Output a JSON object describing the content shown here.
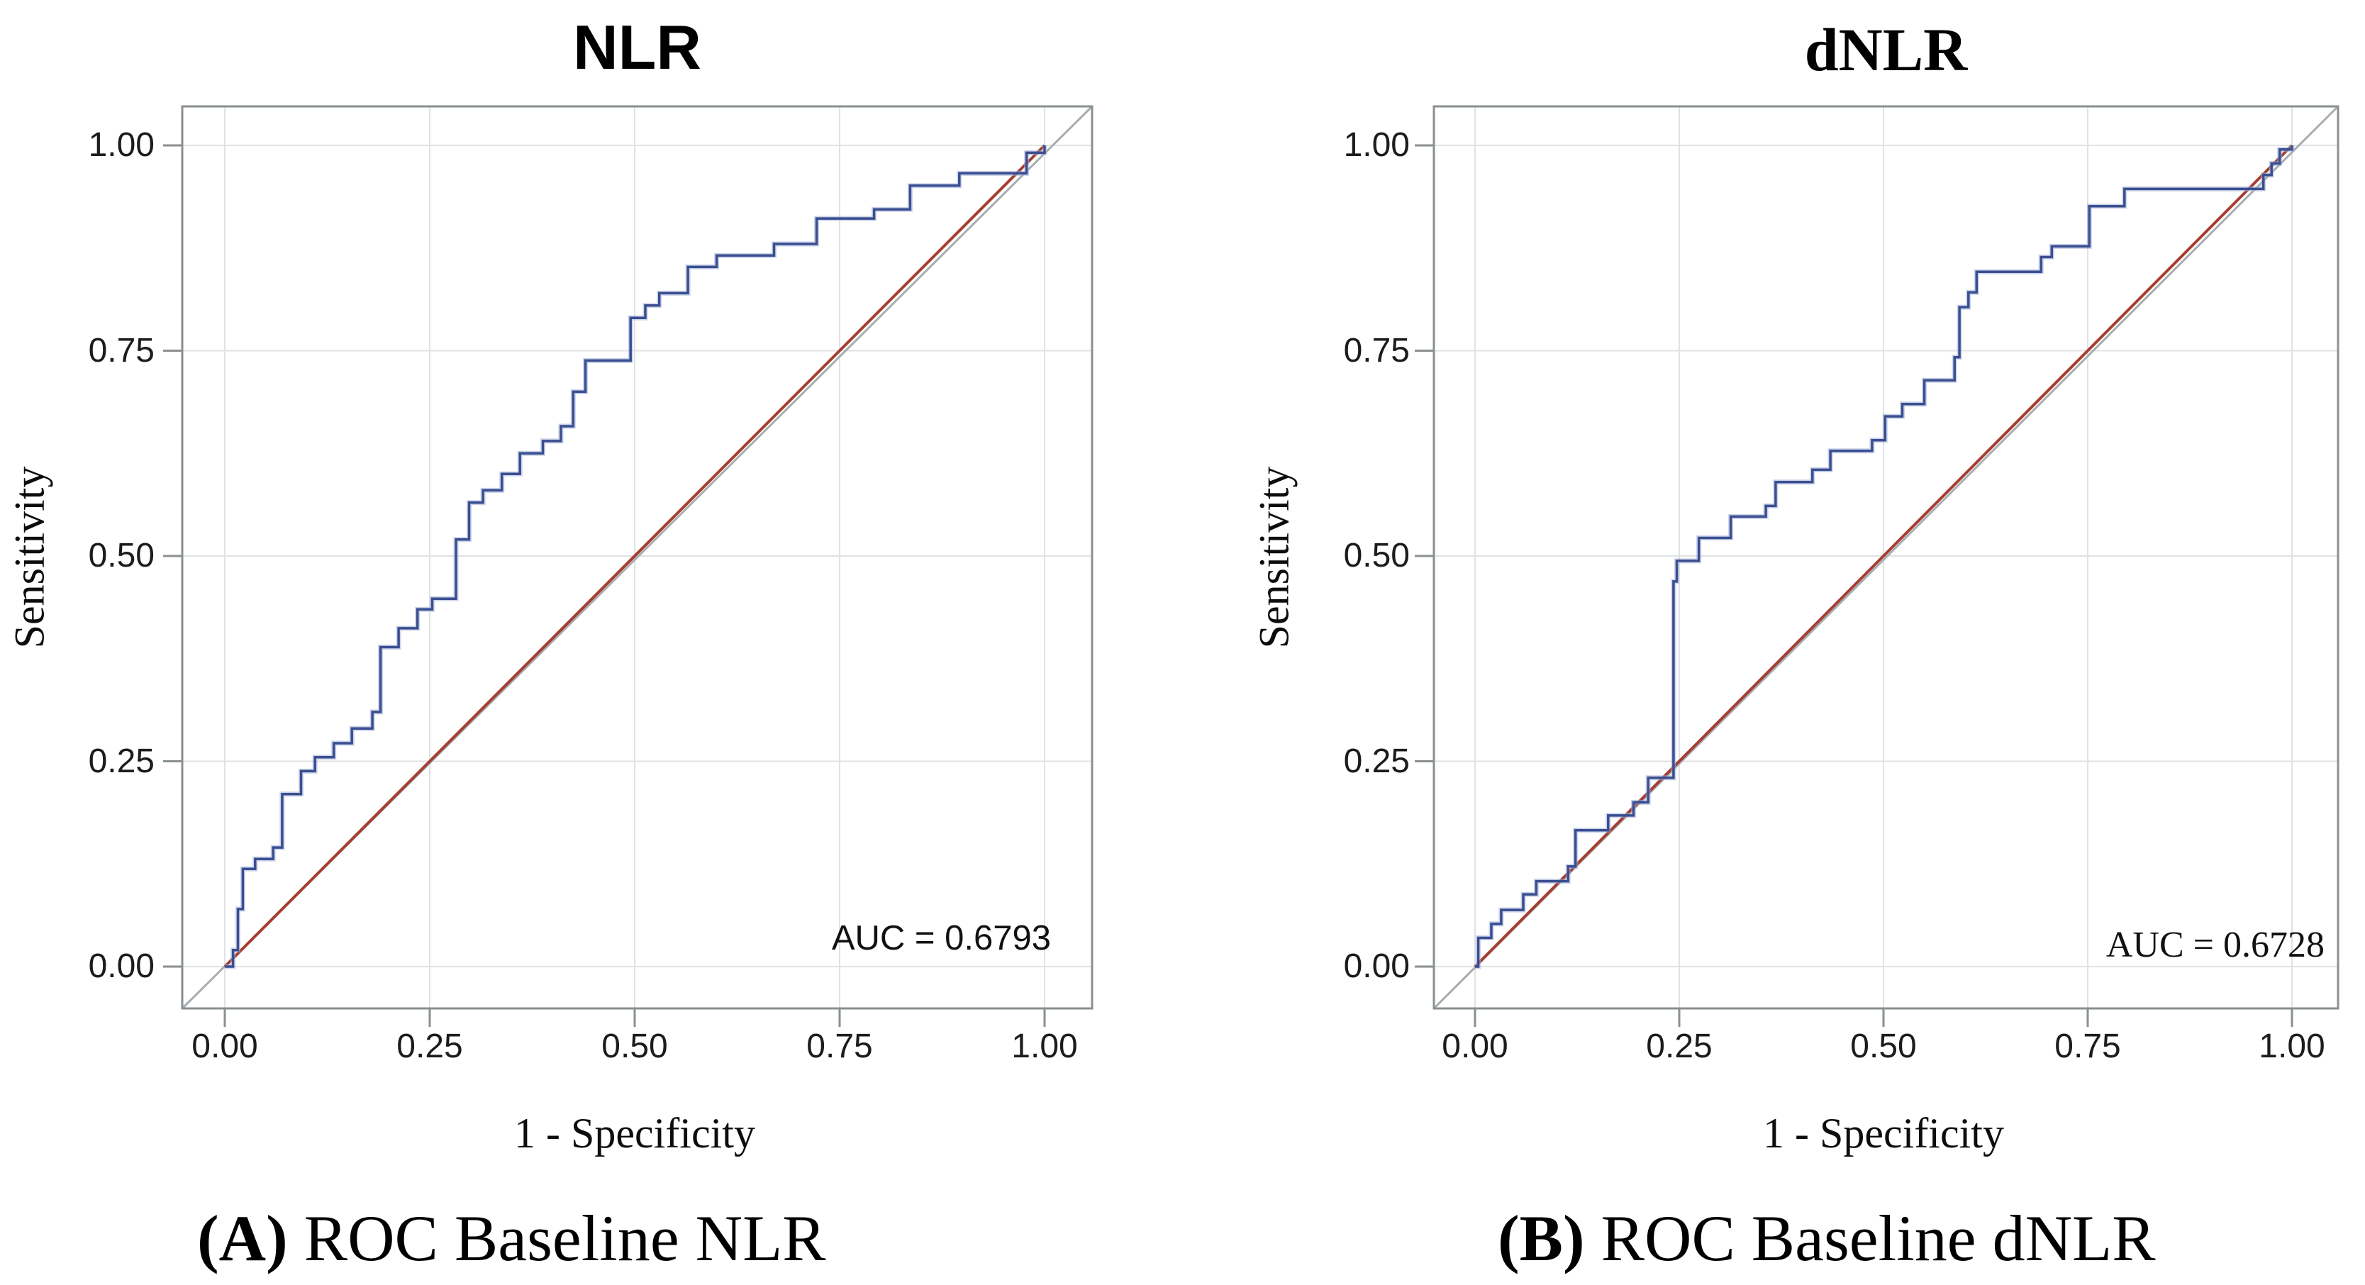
{
  "figure": {
    "background": "#ffffff",
    "colors": {
      "roc_curve": "#3a4e91",
      "roc_curve_halo": "#9fafd6",
      "reference_diagonal": "#a63d31",
      "frame_diagonal": "#a8adb0",
      "gridline": "#e0e2e3",
      "frame": "#8a8f91",
      "tick_mark": "#8a8f91",
      "text": "#000000"
    },
    "panels": [
      {
        "id": "A",
        "title": "NLR",
        "y_axis_label": "Sensitivity",
        "x_axis_label": "1 - Specificity",
        "x_ticks": [
          "0.00",
          "0.25",
          "0.50",
          "0.75",
          "1.00"
        ],
        "y_ticks": [
          "1.00",
          "0.75",
          "0.50",
          "0.25",
          "0.00"
        ],
        "auc_label": "AUC = 0.6793",
        "caption_bold": "(A)",
        "caption_rest": " ROC Baseline NLR"
      },
      {
        "id": "B",
        "title": "dNLR",
        "y_axis_label": "Sensitivity",
        "x_axis_label": "1 - Specificity",
        "x_ticks": [
          "0.00",
          "0.25",
          "0.50",
          "0.75",
          "1.00"
        ],
        "y_ticks": [
          "1.00",
          "0.75",
          "0.50",
          "0.25",
          "0.00"
        ],
        "auc_label": "AUC = 0.6728",
        "caption_bold": "(B)",
        "caption_rest": " ROC Baseline dNLR"
      }
    ]
  },
  "chart_data": [
    {
      "type": "line",
      "subtype": "roc-step",
      "title": "NLR",
      "xlabel": "1 - Specificity",
      "ylabel": "Sensitivity",
      "xlim": [
        0,
        1
      ],
      "ylim": [
        0,
        1
      ],
      "x_tick_values": [
        0,
        0.25,
        0.5,
        0.75,
        1
      ],
      "y_tick_values": [
        1,
        0.75,
        0.5,
        0.25,
        0
      ],
      "grid": true,
      "auc": 0.6793,
      "annotation": "AUC = 0.6793",
      "reference_line": {
        "from": [
          0,
          0
        ],
        "to": [
          1,
          1
        ]
      },
      "series": [
        {
          "name": "ROC curve",
          "points": [
            [
              0.0,
              0.0
            ],
            [
              0.01,
              0.0
            ],
            [
              0.01,
              0.02
            ],
            [
              0.016,
              0.02
            ],
            [
              0.016,
              0.07
            ],
            [
              0.022,
              0.07
            ],
            [
              0.022,
              0.119
            ],
            [
              0.037,
              0.119
            ],
            [
              0.037,
              0.131
            ],
            [
              0.059,
              0.131
            ],
            [
              0.059,
              0.145
            ],
            [
              0.07,
              0.145
            ],
            [
              0.07,
              0.21
            ],
            [
              0.093,
              0.21
            ],
            [
              0.093,
              0.238
            ],
            [
              0.11,
              0.238
            ],
            [
              0.11,
              0.255
            ],
            [
              0.133,
              0.255
            ],
            [
              0.133,
              0.272
            ],
            [
              0.155,
              0.272
            ],
            [
              0.155,
              0.29
            ],
            [
              0.18,
              0.29
            ],
            [
              0.18,
              0.31
            ],
            [
              0.19,
              0.31
            ],
            [
              0.19,
              0.389
            ],
            [
              0.212,
              0.389
            ],
            [
              0.212,
              0.412
            ],
            [
              0.235,
              0.412
            ],
            [
              0.235,
              0.435
            ],
            [
              0.253,
              0.435
            ],
            [
              0.253,
              0.448
            ],
            [
              0.282,
              0.448
            ],
            [
              0.282,
              0.52
            ],
            [
              0.298,
              0.52
            ],
            [
              0.298,
              0.565
            ],
            [
              0.315,
              0.565
            ],
            [
              0.315,
              0.58
            ],
            [
              0.338,
              0.58
            ],
            [
              0.338,
              0.6
            ],
            [
              0.36,
              0.6
            ],
            [
              0.36,
              0.625
            ],
            [
              0.388,
              0.625
            ],
            [
              0.388,
              0.64
            ],
            [
              0.41,
              0.64
            ],
            [
              0.41,
              0.658
            ],
            [
              0.425,
              0.658
            ],
            [
              0.425,
              0.7
            ],
            [
              0.44,
              0.7
            ],
            [
              0.44,
              0.738
            ],
            [
              0.495,
              0.738
            ],
            [
              0.495,
              0.79
            ],
            [
              0.513,
              0.79
            ],
            [
              0.513,
              0.805
            ],
            [
              0.53,
              0.805
            ],
            [
              0.53,
              0.82
            ],
            [
              0.565,
              0.82
            ],
            [
              0.565,
              0.852
            ],
            [
              0.6,
              0.852
            ],
            [
              0.6,
              0.866
            ],
            [
              0.67,
              0.866
            ],
            [
              0.67,
              0.88
            ],
            [
              0.722,
              0.88
            ],
            [
              0.722,
              0.911
            ],
            [
              0.792,
              0.911
            ],
            [
              0.792,
              0.922
            ],
            [
              0.836,
              0.922
            ],
            [
              0.836,
              0.951
            ],
            [
              0.896,
              0.951
            ],
            [
              0.896,
              0.966
            ],
            [
              0.978,
              0.966
            ],
            [
              0.978,
              0.991
            ],
            [
              1.0,
              0.991
            ],
            [
              1.0,
              1.0
            ]
          ]
        }
      ]
    },
    {
      "type": "line",
      "subtype": "roc-step",
      "title": "dNLR",
      "xlabel": "1 - Specificity",
      "ylabel": "Sensitivity",
      "xlim": [
        0,
        1
      ],
      "ylim": [
        0,
        1
      ],
      "x_tick_values": [
        0,
        0.25,
        0.5,
        0.75,
        1
      ],
      "y_tick_values": [
        1,
        0.75,
        0.5,
        0.25,
        0
      ],
      "grid": true,
      "auc": 0.6728,
      "annotation": "AUC = 0.6728",
      "reference_line": {
        "from": [
          0,
          0
        ],
        "to": [
          1,
          1
        ]
      },
      "series": [
        {
          "name": "ROC curve",
          "points": [
            [
              0.0,
              0.0
            ],
            [
              0.004,
              0.0
            ],
            [
              0.004,
              0.035
            ],
            [
              0.02,
              0.035
            ],
            [
              0.02,
              0.052
            ],
            [
              0.032,
              0.052
            ],
            [
              0.032,
              0.069
            ],
            [
              0.059,
              0.069
            ],
            [
              0.059,
              0.088
            ],
            [
              0.075,
              0.088
            ],
            [
              0.075,
              0.104
            ],
            [
              0.114,
              0.104
            ],
            [
              0.114,
              0.122
            ],
            [
              0.123,
              0.122
            ],
            [
              0.123,
              0.166
            ],
            [
              0.163,
              0.166
            ],
            [
              0.163,
              0.184
            ],
            [
              0.194,
              0.184
            ],
            [
              0.194,
              0.2
            ],
            [
              0.212,
              0.2
            ],
            [
              0.212,
              0.23
            ],
            [
              0.243,
              0.23
            ],
            [
              0.243,
              0.469
            ],
            [
              0.247,
              0.469
            ],
            [
              0.247,
              0.494
            ],
            [
              0.274,
              0.494
            ],
            [
              0.274,
              0.522
            ],
            [
              0.313,
              0.522
            ],
            [
              0.313,
              0.548
            ],
            [
              0.356,
              0.548
            ],
            [
              0.356,
              0.561
            ],
            [
              0.368,
              0.561
            ],
            [
              0.368,
              0.59
            ],
            [
              0.413,
              0.59
            ],
            [
              0.413,
              0.605
            ],
            [
              0.435,
              0.605
            ],
            [
              0.435,
              0.628
            ],
            [
              0.486,
              0.628
            ],
            [
              0.486,
              0.641
            ],
            [
              0.502,
              0.641
            ],
            [
              0.502,
              0.67
            ],
            [
              0.523,
              0.67
            ],
            [
              0.523,
              0.685
            ],
            [
              0.55,
              0.685
            ],
            [
              0.55,
              0.714
            ],
            [
              0.587,
              0.714
            ],
            [
              0.587,
              0.742
            ],
            [
              0.593,
              0.742
            ],
            [
              0.593,
              0.803
            ],
            [
              0.604,
              0.803
            ],
            [
              0.604,
              0.821
            ],
            [
              0.614,
              0.821
            ],
            [
              0.614,
              0.846
            ],
            [
              0.693,
              0.846
            ],
            [
              0.693,
              0.864
            ],
            [
              0.706,
              0.864
            ],
            [
              0.706,
              0.877
            ],
            [
              0.752,
              0.877
            ],
            [
              0.752,
              0.926
            ],
            [
              0.795,
              0.926
            ],
            [
              0.795,
              0.947
            ],
            [
              0.965,
              0.947
            ],
            [
              0.965,
              0.964
            ],
            [
              0.975,
              0.964
            ],
            [
              0.975,
              0.978
            ],
            [
              0.985,
              0.978
            ],
            [
              0.985,
              0.995
            ],
            [
              1.0,
              0.995
            ],
            [
              1.0,
              1.0
            ]
          ]
        }
      ]
    }
  ]
}
